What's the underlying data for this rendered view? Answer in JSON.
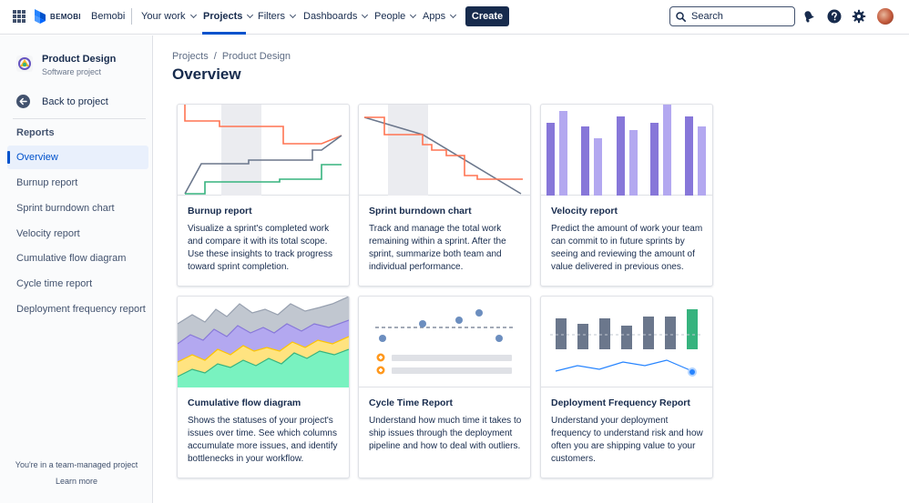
{
  "topnav": {
    "logo_text": "BEMOBI",
    "site_name": "Bemobi",
    "items": [
      {
        "label": "Your work"
      },
      {
        "label": "Projects"
      },
      {
        "label": "Filters"
      },
      {
        "label": "Dashboards"
      },
      {
        "label": "People"
      },
      {
        "label": "Apps"
      }
    ],
    "create_label": "Create",
    "search_placeholder": "Search",
    "brand_color": "#0052cc",
    "icons": [
      "apps-grid-icon",
      "search-icon",
      "notification-icon",
      "help-icon",
      "settings-icon"
    ]
  },
  "sidebar": {
    "project_name": "Product Design",
    "project_type": "Software project",
    "back_label": "Back to project",
    "section_title": "Reports",
    "items": [
      {
        "label": "Overview",
        "active": true
      },
      {
        "label": "Burnup report"
      },
      {
        "label": "Sprint burndown chart"
      },
      {
        "label": "Velocity report"
      },
      {
        "label": "Cumulative flow diagram"
      },
      {
        "label": "Cycle time report"
      },
      {
        "label": "Deployment frequency report"
      }
    ],
    "footer_note": "You're in a team-managed project",
    "footer_link": "Learn more"
  },
  "main": {
    "breadcrumb": [
      "Projects",
      "/",
      "Product Design"
    ],
    "title": "Overview",
    "cards": [
      {
        "title": "Burnup report",
        "description": "Visualize a sprint's completed work and compare it with its total scope. Use these insights to track progress toward sprint completion."
      },
      {
        "title": "Sprint burndown chart",
        "description": "Track and manage the total work remaining within a sprint. After the sprint, summarize both team and individual performance."
      },
      {
        "title": "Velocity report",
        "description": "Predict the amount of work your team can commit to in future sprints by seeing and reviewing the amount of value delivered in previous ones."
      },
      {
        "title": "Cumulative flow diagram",
        "description": "Shows the statuses of your project's issues over time. See which columns accumulate more issues, and identify bottlenecks in your workflow."
      },
      {
        "title": "Cycle Time Report",
        "description": "Understand how much time it takes to ship issues through the deployment pipeline and how to deal with outliers."
      },
      {
        "title": "Deployment Frequency Report",
        "description": "Understand your deployment frequency to understand risk and how often you are shipping value to your customers."
      }
    ]
  }
}
